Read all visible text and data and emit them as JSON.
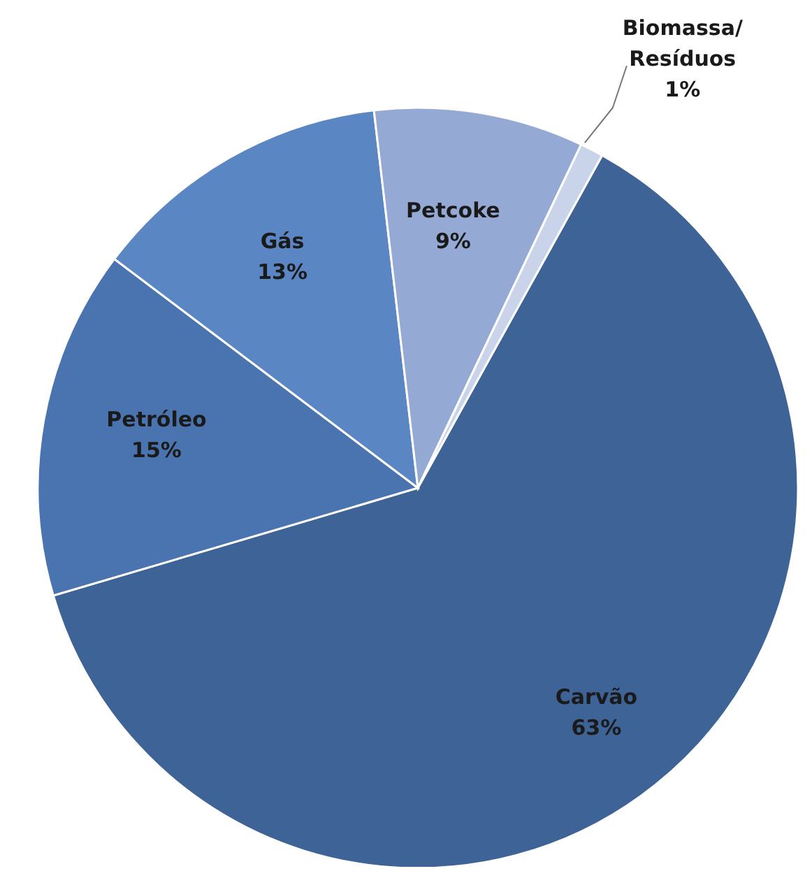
{
  "chart_data": {
    "type": "pie",
    "categories": [
      "Carvão",
      "Petróleo",
      "Gás",
      "Petcoke",
      "Biomassa/Resíduos"
    ],
    "values": [
      63,
      15,
      13,
      9,
      1
    ],
    "value_labels": [
      "63%",
      "15%",
      "13%",
      "9%",
      "1%"
    ],
    "colors": [
      "#3d6397",
      "#4a74b0",
      "#5a86c4",
      "#94aad4",
      "#c9d3ea"
    ]
  }
}
